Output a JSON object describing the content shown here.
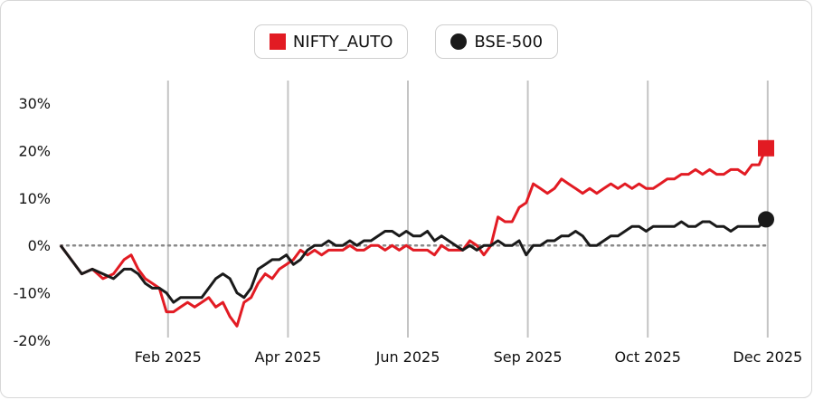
{
  "legend": {
    "items": [
      {
        "label": "NIFTY_AUTO",
        "color": "#e21b23",
        "marker": "square"
      },
      {
        "label": "BSE-500",
        "color": "#1a1a1a",
        "marker": "circle"
      }
    ]
  },
  "chart_data": {
    "type": "line",
    "title": "",
    "xlabel": "",
    "ylabel": "",
    "ylim": [
      -20,
      30
    ],
    "xlim": [
      0,
      100
    ],
    "y_ticks": [
      "30%",
      "20%",
      "10%",
      "0%",
      "-10%",
      "-20%"
    ],
    "y_tick_values": [
      30,
      20,
      10,
      0,
      -10,
      -20
    ],
    "x_ticks": [
      {
        "label": "Feb 2025",
        "x": 16
      },
      {
        "label": "Apr 2025",
        "x": 33
      },
      {
        "label": "Jun 2025",
        "x": 50
      },
      {
        "label": "Sep 2025",
        "x": 67
      },
      {
        "label": "Oct 2025",
        "x": 84
      },
      {
        "label": "Dec 2025",
        "x": 101
      }
    ],
    "grid": "vertical",
    "zero_line": "dotted",
    "legend_position": "top-center",
    "series": [
      {
        "name": "NIFTY_AUTO",
        "color": "#e21b23",
        "end_marker": "square",
        "points": [
          [
            0,
            0
          ],
          [
            1.5,
            -3
          ],
          [
            3,
            -6
          ],
          [
            4.5,
            -5
          ],
          [
            6,
            -7
          ],
          [
            7.5,
            -6
          ],
          [
            9,
            -3
          ],
          [
            10,
            -2
          ],
          [
            11,
            -5
          ],
          [
            12,
            -7
          ],
          [
            13,
            -8
          ],
          [
            14,
            -9
          ],
          [
            15,
            -14
          ],
          [
            16,
            -14
          ],
          [
            17,
            -13
          ],
          [
            18,
            -12
          ],
          [
            19,
            -13
          ],
          [
            20,
            -12
          ],
          [
            21,
            -11
          ],
          [
            22,
            -13
          ],
          [
            23,
            -12
          ],
          [
            24,
            -15
          ],
          [
            25,
            -17
          ],
          [
            26,
            -12
          ],
          [
            27,
            -11
          ],
          [
            28,
            -8
          ],
          [
            29,
            -6
          ],
          [
            30,
            -7
          ],
          [
            31,
            -5
          ],
          [
            32,
            -4
          ],
          [
            33,
            -3
          ],
          [
            34,
            -1
          ],
          [
            35,
            -2
          ],
          [
            36,
            -1
          ],
          [
            37,
            -2
          ],
          [
            38,
            -1
          ],
          [
            39,
            -1
          ],
          [
            40,
            -1
          ],
          [
            41,
            0
          ],
          [
            42,
            -1
          ],
          [
            43,
            -1
          ],
          [
            44,
            0
          ],
          [
            45,
            0
          ],
          [
            46,
            -1
          ],
          [
            47,
            0
          ],
          [
            48,
            -1
          ],
          [
            49,
            0
          ],
          [
            50,
            -1
          ],
          [
            51,
            -1
          ],
          [
            52,
            -1
          ],
          [
            53,
            -2
          ],
          [
            54,
            0
          ],
          [
            55,
            -1
          ],
          [
            56,
            -1
          ],
          [
            57,
            -1
          ],
          [
            58,
            1
          ],
          [
            59,
            0
          ],
          [
            60,
            -2
          ],
          [
            61,
            0
          ],
          [
            62,
            6
          ],
          [
            63,
            5
          ],
          [
            64,
            5
          ],
          [
            65,
            8
          ],
          [
            66,
            9
          ],
          [
            67,
            13
          ],
          [
            68,
            12
          ],
          [
            69,
            11
          ],
          [
            70,
            12
          ],
          [
            71,
            14
          ],
          [
            72,
            13
          ],
          [
            73,
            12
          ],
          [
            74,
            11
          ],
          [
            75,
            12
          ],
          [
            76,
            11
          ],
          [
            77,
            12
          ],
          [
            78,
            13
          ],
          [
            79,
            12
          ],
          [
            80,
            13
          ],
          [
            81,
            12
          ],
          [
            82,
            13
          ],
          [
            83,
            12
          ],
          [
            84,
            12
          ],
          [
            85,
            13
          ],
          [
            86,
            14
          ],
          [
            87,
            14
          ],
          [
            88,
            15
          ],
          [
            89,
            15
          ],
          [
            90,
            16
          ],
          [
            91,
            15
          ],
          [
            92,
            16
          ],
          [
            93,
            15
          ],
          [
            94,
            15
          ],
          [
            95,
            16
          ],
          [
            96,
            16
          ],
          [
            97,
            15
          ],
          [
            98,
            17
          ],
          [
            99,
            17
          ],
          [
            100,
            20.5
          ]
        ]
      },
      {
        "name": "BSE-500",
        "color": "#1a1a1a",
        "end_marker": "circle",
        "points": [
          [
            0,
            0
          ],
          [
            1.5,
            -3
          ],
          [
            3,
            -6
          ],
          [
            4.5,
            -5
          ],
          [
            6,
            -6
          ],
          [
            7.5,
            -7
          ],
          [
            9,
            -5
          ],
          [
            10,
            -5
          ],
          [
            11,
            -6
          ],
          [
            12,
            -8
          ],
          [
            13,
            -9
          ],
          [
            14,
            -9
          ],
          [
            15,
            -10
          ],
          [
            16,
            -12
          ],
          [
            17,
            -11
          ],
          [
            18,
            -11
          ],
          [
            19,
            -11
          ],
          [
            20,
            -11
          ],
          [
            21,
            -9
          ],
          [
            22,
            -7
          ],
          [
            23,
            -6
          ],
          [
            24,
            -7
          ],
          [
            25,
            -10
          ],
          [
            26,
            -11
          ],
          [
            27,
            -9
          ],
          [
            28,
            -5
          ],
          [
            29,
            -4
          ],
          [
            30,
            -3
          ],
          [
            31,
            -3
          ],
          [
            32,
            -2
          ],
          [
            33,
            -4
          ],
          [
            34,
            -3
          ],
          [
            35,
            -1
          ],
          [
            36,
            0
          ],
          [
            37,
            0
          ],
          [
            38,
            1
          ],
          [
            39,
            0
          ],
          [
            40,
            0
          ],
          [
            41,
            1
          ],
          [
            42,
            0
          ],
          [
            43,
            1
          ],
          [
            44,
            1
          ],
          [
            45,
            2
          ],
          [
            46,
            3
          ],
          [
            47,
            3
          ],
          [
            48,
            2
          ],
          [
            49,
            3
          ],
          [
            50,
            2
          ],
          [
            51,
            2
          ],
          [
            52,
            3
          ],
          [
            53,
            1
          ],
          [
            54,
            2
          ],
          [
            55,
            1
          ],
          [
            56,
            0
          ],
          [
            57,
            -1
          ],
          [
            58,
            0
          ],
          [
            59,
            -1
          ],
          [
            60,
            0
          ],
          [
            61,
            0
          ],
          [
            62,
            1
          ],
          [
            63,
            0
          ],
          [
            64,
            0
          ],
          [
            65,
            1
          ],
          [
            66,
            -2
          ],
          [
            67,
            0
          ],
          [
            68,
            0
          ],
          [
            69,
            1
          ],
          [
            70,
            1
          ],
          [
            71,
            2
          ],
          [
            72,
            2
          ],
          [
            73,
            3
          ],
          [
            74,
            2
          ],
          [
            75,
            0
          ],
          [
            76,
            0
          ],
          [
            77,
            1
          ],
          [
            78,
            2
          ],
          [
            79,
            2
          ],
          [
            80,
            3
          ],
          [
            81,
            4
          ],
          [
            82,
            4
          ],
          [
            83,
            3
          ],
          [
            84,
            4
          ],
          [
            85,
            4
          ],
          [
            86,
            4
          ],
          [
            87,
            4
          ],
          [
            88,
            5
          ],
          [
            89,
            4
          ],
          [
            90,
            4
          ],
          [
            91,
            5
          ],
          [
            92,
            5
          ],
          [
            93,
            4
          ],
          [
            94,
            4
          ],
          [
            95,
            3
          ],
          [
            96,
            4
          ],
          [
            97,
            4
          ],
          [
            98,
            4
          ],
          [
            99,
            4
          ],
          [
            100,
            5.5
          ]
        ]
      }
    ]
  }
}
